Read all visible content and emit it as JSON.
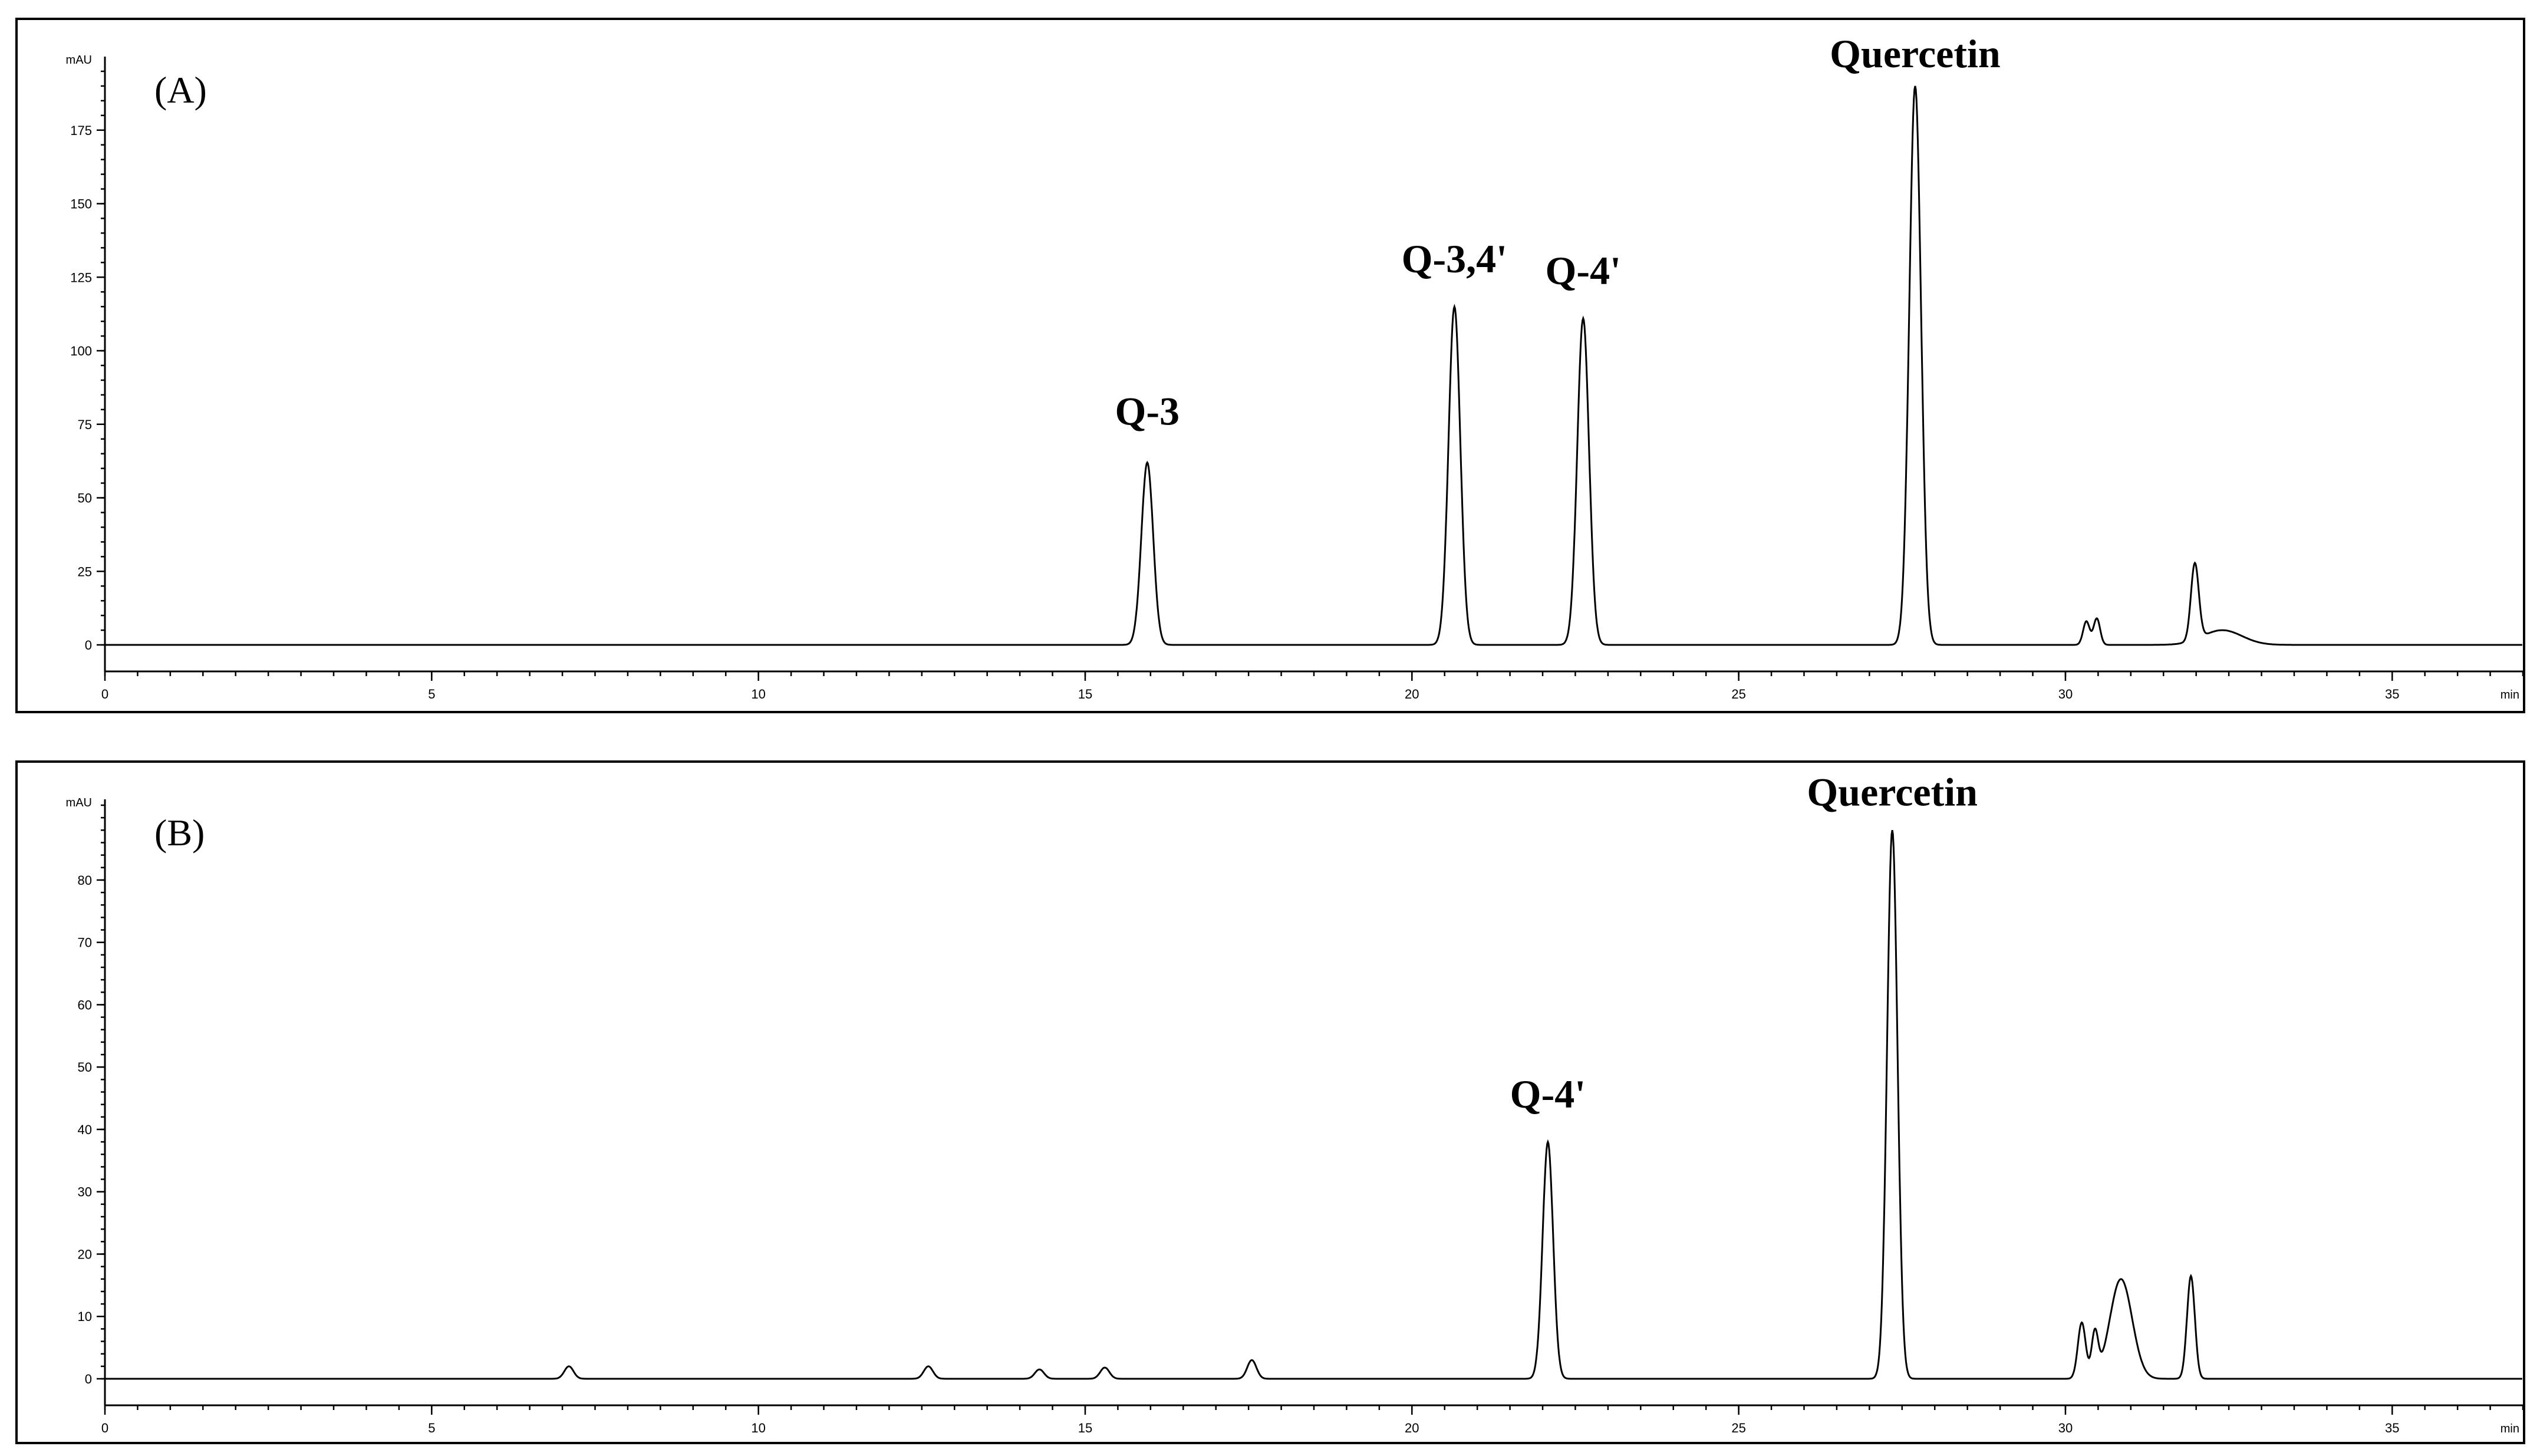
{
  "chart_data": [
    {
      "type": "line",
      "panel_label": "(A)",
      "ylabel": "mAU",
      "xlabel": "min",
      "xlim": [
        0,
        37
      ],
      "ylim": [
        -9,
        198
      ],
      "x_ticks": [
        0,
        5,
        10,
        15,
        20,
        25,
        30,
        35
      ],
      "y_ticks": [
        0,
        25,
        50,
        75,
        100,
        125,
        150,
        175
      ],
      "peaks": [
        {
          "label": "Q-3",
          "rt": 15.95,
          "height": 62,
          "width": 0.09
        },
        {
          "label": "Q-3,4'",
          "rt": 20.65,
          "height": 115,
          "width": 0.09
        },
        {
          "label": "Q-4'",
          "rt": 22.62,
          "height": 111,
          "width": 0.09
        },
        {
          "label": "Quercetin",
          "rt": 27.7,
          "height": 190,
          "width": 0.09
        },
        {
          "label": "",
          "rt": 30.32,
          "height": 8,
          "width": 0.05
        },
        {
          "label": "",
          "rt": 30.48,
          "height": 9,
          "width": 0.05
        },
        {
          "label": "",
          "rt": 31.98,
          "height": 26,
          "width": 0.06
        },
        {
          "label": "",
          "rt": 32.4,
          "height": 5,
          "width": 0.3
        }
      ],
      "trace_color": "#000000"
    },
    {
      "type": "line",
      "panel_label": "(B)",
      "ylabel": "mAU",
      "xlabel": "min",
      "xlim": [
        0,
        37
      ],
      "ylim": [
        -4.5,
        92
      ],
      "x_ticks": [
        0,
        5,
        10,
        15,
        20,
        25,
        30,
        35
      ],
      "y_ticks": [
        0,
        10,
        20,
        30,
        40,
        50,
        60,
        70,
        80
      ],
      "peaks": [
        {
          "label": "",
          "rt": 7.1,
          "height": 2,
          "width": 0.07
        },
        {
          "label": "",
          "rt": 12.6,
          "height": 2,
          "width": 0.07
        },
        {
          "label": "",
          "rt": 14.3,
          "height": 1.5,
          "width": 0.07
        },
        {
          "label": "",
          "rt": 15.3,
          "height": 1.8,
          "width": 0.07
        },
        {
          "label": "",
          "rt": 17.55,
          "height": 3,
          "width": 0.07
        },
        {
          "label": "Q-4'",
          "rt": 22.08,
          "height": 38,
          "width": 0.08
        },
        {
          "label": "Quercetin",
          "rt": 27.35,
          "height": 88,
          "width": 0.08
        },
        {
          "label": "",
          "rt": 30.25,
          "height": 9,
          "width": 0.06
        },
        {
          "label": "",
          "rt": 30.45,
          "height": 7,
          "width": 0.05
        },
        {
          "label": "",
          "rt": 30.85,
          "height": 16,
          "width": 0.17
        },
        {
          "label": "",
          "rt": 31.92,
          "height": 16.5,
          "width": 0.06
        }
      ],
      "trace_color": "#000000"
    }
  ]
}
